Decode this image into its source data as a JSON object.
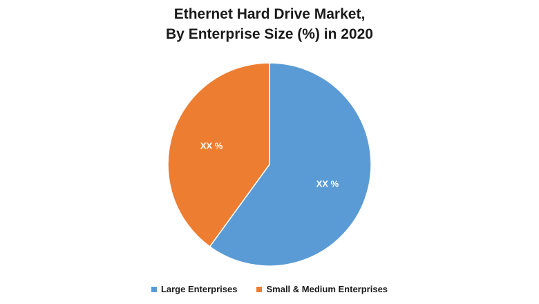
{
  "chart_data": {
    "type": "pie",
    "title_lines": [
      "Ethernet Hard Drive Market,",
      "By Enterprise Size (%) in 2020"
    ],
    "slices": [
      {
        "name": "Large Enterprises",
        "value": 60,
        "label": "XX %",
        "color": "#5b9bd5"
      },
      {
        "name": "Small & Medium Enterprises",
        "value": 40,
        "label": "XX %",
        "color": "#ed7d31"
      }
    ],
    "legend_position": "bottom"
  }
}
